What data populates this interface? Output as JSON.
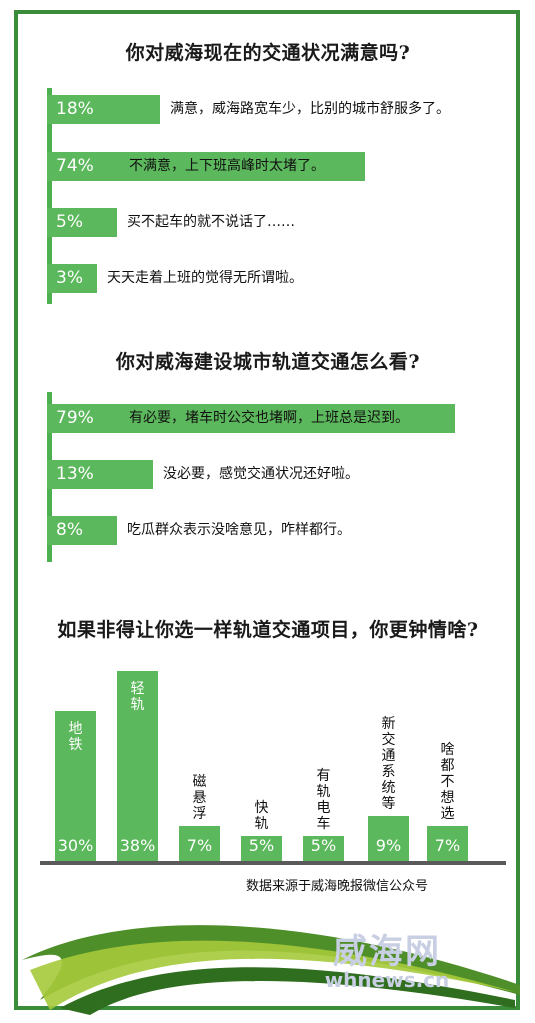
{
  "q1": {
    "title": "你对威海现在的交通状况满意吗?",
    "items": [
      {
        "pct": "18%",
        "text": "满意，威海路宽车少，比别的城市舒服多了。"
      },
      {
        "pct": "74%",
        "text": "不满意，上下班高峰时太堵了。"
      },
      {
        "pct": "5%",
        "text": "买不起车的就不说话了……"
      },
      {
        "pct": "3%",
        "text": "天天走着上班的觉得无所谓啦。"
      }
    ]
  },
  "q2": {
    "title": "你对威海建设城市轨道交通怎么看?",
    "items": [
      {
        "pct": "79%",
        "text": "有必要，堵车时公交也堵啊，上班总是迟到。"
      },
      {
        "pct": "13%",
        "text": "没必要，感觉交通状况还好啦。"
      },
      {
        "pct": "8%",
        "text": "吃瓜群众表示没啥意见，咋样都行。"
      }
    ]
  },
  "q3": {
    "title": "如果非得让你选一样轨道交通项目，你更钟情啥?"
  },
  "chart_data": [
    {
      "type": "bar",
      "orientation": "horizontal",
      "title": "你对威海现在的交通状况满意吗?",
      "categories": [
        "满意，威海路宽车少，比别的城市舒服多了。",
        "不满意，上下班高峰时太堵了。",
        "买不起车的就不说话了……",
        "天天走着上班的觉得无所谓啦。"
      ],
      "values": [
        18,
        74,
        5,
        3
      ],
      "ylim": [
        0,
        100
      ]
    },
    {
      "type": "bar",
      "orientation": "horizontal",
      "title": "你对威海建设城市轨道交通怎么看?",
      "categories": [
        "有必要，堵车时公交也堵啊，上班总是迟到。",
        "没必要，感觉交通状况还好啦。",
        "吃瓜群众表示没啥意见，咋样都行。"
      ],
      "values": [
        79,
        13,
        8
      ],
      "ylim": [
        0,
        100
      ]
    },
    {
      "type": "bar",
      "orientation": "vertical",
      "title": "如果非得让你选一样轨道交通项目，你更钟情啥?",
      "categories": [
        "地铁",
        "轻轨",
        "磁悬浮",
        "快轨",
        "有轨电车",
        "新交通系统等",
        "啥都不想选"
      ],
      "values": [
        30,
        38,
        7,
        5,
        5,
        9,
        7
      ],
      "value_labels": [
        "30%",
        "38%",
        "7%",
        "5%",
        "5%",
        "9%",
        "7%"
      ],
      "ylim": [
        0,
        40
      ]
    }
  ],
  "source": "数据来源于威海晚报微信公众号",
  "watermark": {
    "logo": "威海网",
    "url": "whnews.cn"
  },
  "colors": {
    "bar": "#5cb85c",
    "frame": "#3a8c3a",
    "axis": "#5a5a5a"
  }
}
